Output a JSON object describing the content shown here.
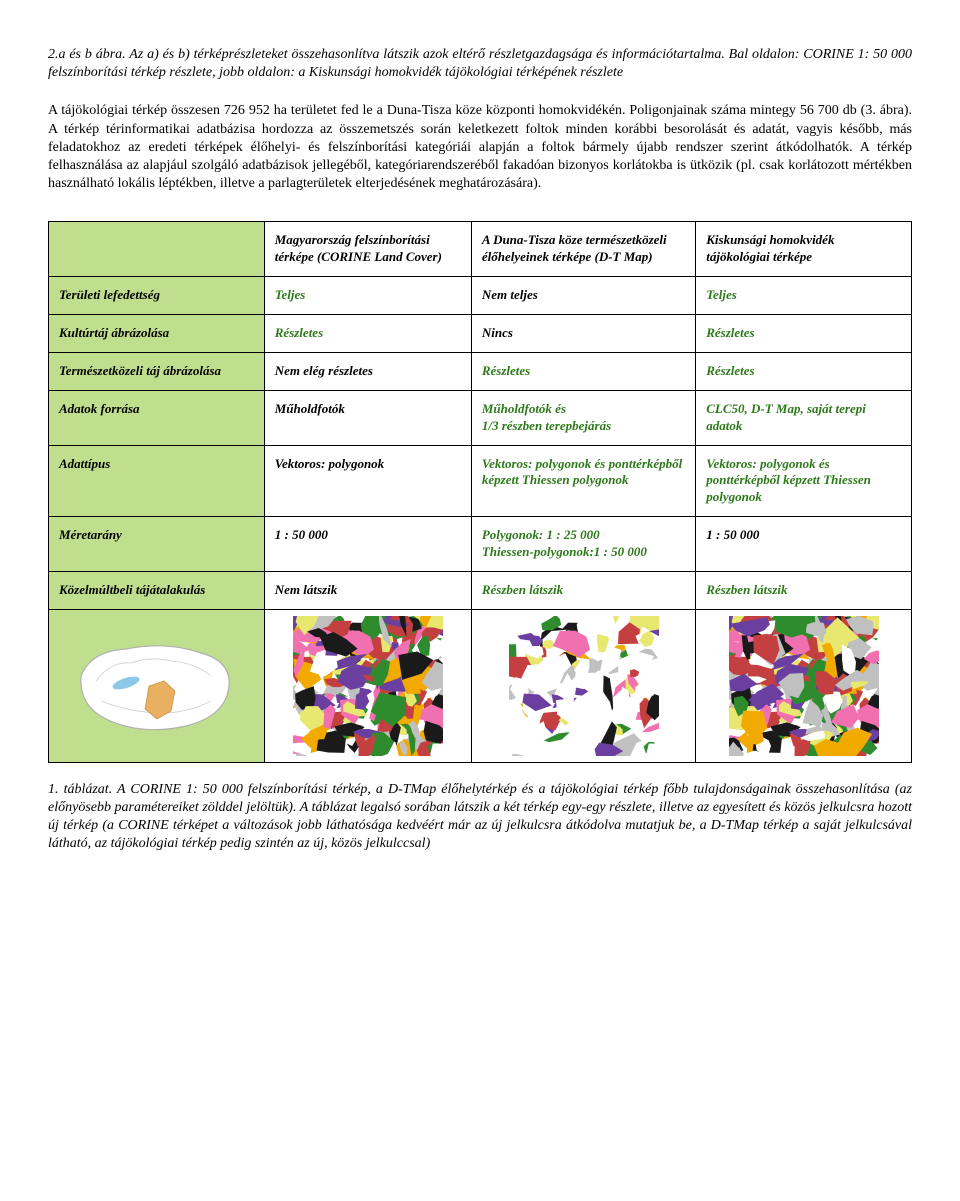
{
  "caption1": "2.a és b ábra. Az a) és b) térképrészleteket összehasonlítva látszik azok eltérő részletgazdagsága és információtartalma. Bal oldalon: CORINE 1: 50 000 felszínborítási térkép részlete, jobb oldalon: a Kiskunsági homokvidék tájökológiai térképének részlete",
  "body": "A tájökológiai térkép összesen 726 952 ha területet fed le a Duna-Tisza köze központi homokvidékén. Poligonjainak száma mintegy 56 700 db (3. ábra). A térkép térinformatikai adatbázisa hordozza az összemetszés során keletkezett foltok minden korábbi besorolását és adatát, vagyis később, más feladatokhoz az eredeti térképek élőhelyi- és felszínborítási kategóriái alapján a foltok bármely újabb rendszer szerint átkódolhatók. A térkép felhasználása az alapjául szolgáló adatbázisok jellegéből, kategóriarendszeréből fakadóan bizonyos korlátokba is ütközik (pl. csak korlátozott mértékben használható lokális léptékben, illetve a parlagterületek elterjedésének meghatározására).",
  "table": {
    "headers": [
      "",
      "Magyarország felszínborítási térképe (CORINE Land Cover)",
      "A Duna-Tisza köze természetközeli élőhelyeinek térképe (D-T Map)",
      "Kiskunsági homokvidék tájökológiai térképe"
    ],
    "rows": [
      {
        "label": "Területi lefedettség",
        "c1": {
          "t": "Teljes",
          "g": true
        },
        "c2": {
          "t": "Nem teljes",
          "g": false
        },
        "c3": {
          "t": "Teljes",
          "g": true
        }
      },
      {
        "label": "Kultúrtáj ábrázolása",
        "c1": {
          "t": "Részletes",
          "g": true
        },
        "c2": {
          "t": "Nincs",
          "g": false
        },
        "c3": {
          "t": "Részletes",
          "g": true
        }
      },
      {
        "label": "Természetközeli táj ábrázolása",
        "c1": {
          "t": "Nem elég részletes",
          "g": false
        },
        "c2": {
          "t": "Részletes",
          "g": true
        },
        "c3": {
          "t": "Részletes",
          "g": true
        }
      },
      {
        "label": "Adatok forrása",
        "c1": {
          "t": "Műholdfotók",
          "g": false
        },
        "c2": {
          "t": "Műholdfotók és\n1/3 részben terepbejárás",
          "g": true
        },
        "c3": {
          "t": "CLC50, D-T Map, saját terepi adatok",
          "g": true
        }
      },
      {
        "label": "Adattípus",
        "c1": {
          "t": "Vektoros: polygonok",
          "g": false
        },
        "c2": {
          "t": "Vektoros: polygonok és ponttérképből képzett Thiessen polygonok",
          "g": true
        },
        "c3": {
          "t": "Vektoros: polygonok és ponttérképből képzett Thiessen polygonok",
          "g": true
        }
      },
      {
        "label": "Méretarány",
        "c1": {
          "t": "1 : 50 000",
          "g": false
        },
        "c2": {
          "t": "Polygonok: 1 : 25 000\nThiessen-polygonok:1 : 50 000",
          "g": true
        },
        "c3": {
          "t": "1 : 50 000",
          "g": false
        }
      },
      {
        "label": "Közelmúltbeli tájátalakulás",
        "c1": {
          "t": "Nem látszik",
          "g": false
        },
        "c2": {
          "t": "Részben látszik",
          "g": true
        },
        "c3": {
          "t": "Részben látszik",
          "g": true
        }
      }
    ],
    "header_bg": "#c0df8e",
    "green_color": "#2d7a1a",
    "thumbs": {
      "hungary_outline": "#b0b0b0",
      "region_fill": "#e8b060",
      "lake": "#8fc7e8",
      "map_palette": [
        "#f2a900",
        "#6b3fa0",
        "#2e8b2e",
        "#c44040",
        "#ffffff",
        "#c0c0c0",
        "#1a1a1a",
        "#e8e870",
        "#f070b0"
      ]
    }
  },
  "caption2": "1. táblázat. A CORINE 1: 50 000 felszínborítási térkép, a D-TMap élőhelytérkép és a tájökológiai térkép főbb tulajdonságainak összehasonlítása (az előnyösebb paramétereiket zölddel jelöltük). A táblázat legalsó sorában látszik a két térkép egy-egy részlete, illetve az egyesített és közös jelkulcsra hozott új térkép (a CORINE térképet a változások jobb láthatósága  kedvéért már az új jelkulcsra átkódolva mutatjuk be, a D-TMap térkép a saját jelkulcsával látható,  az tájökológiai térkép pedig szintén az új, közös jelkulccsal)"
}
